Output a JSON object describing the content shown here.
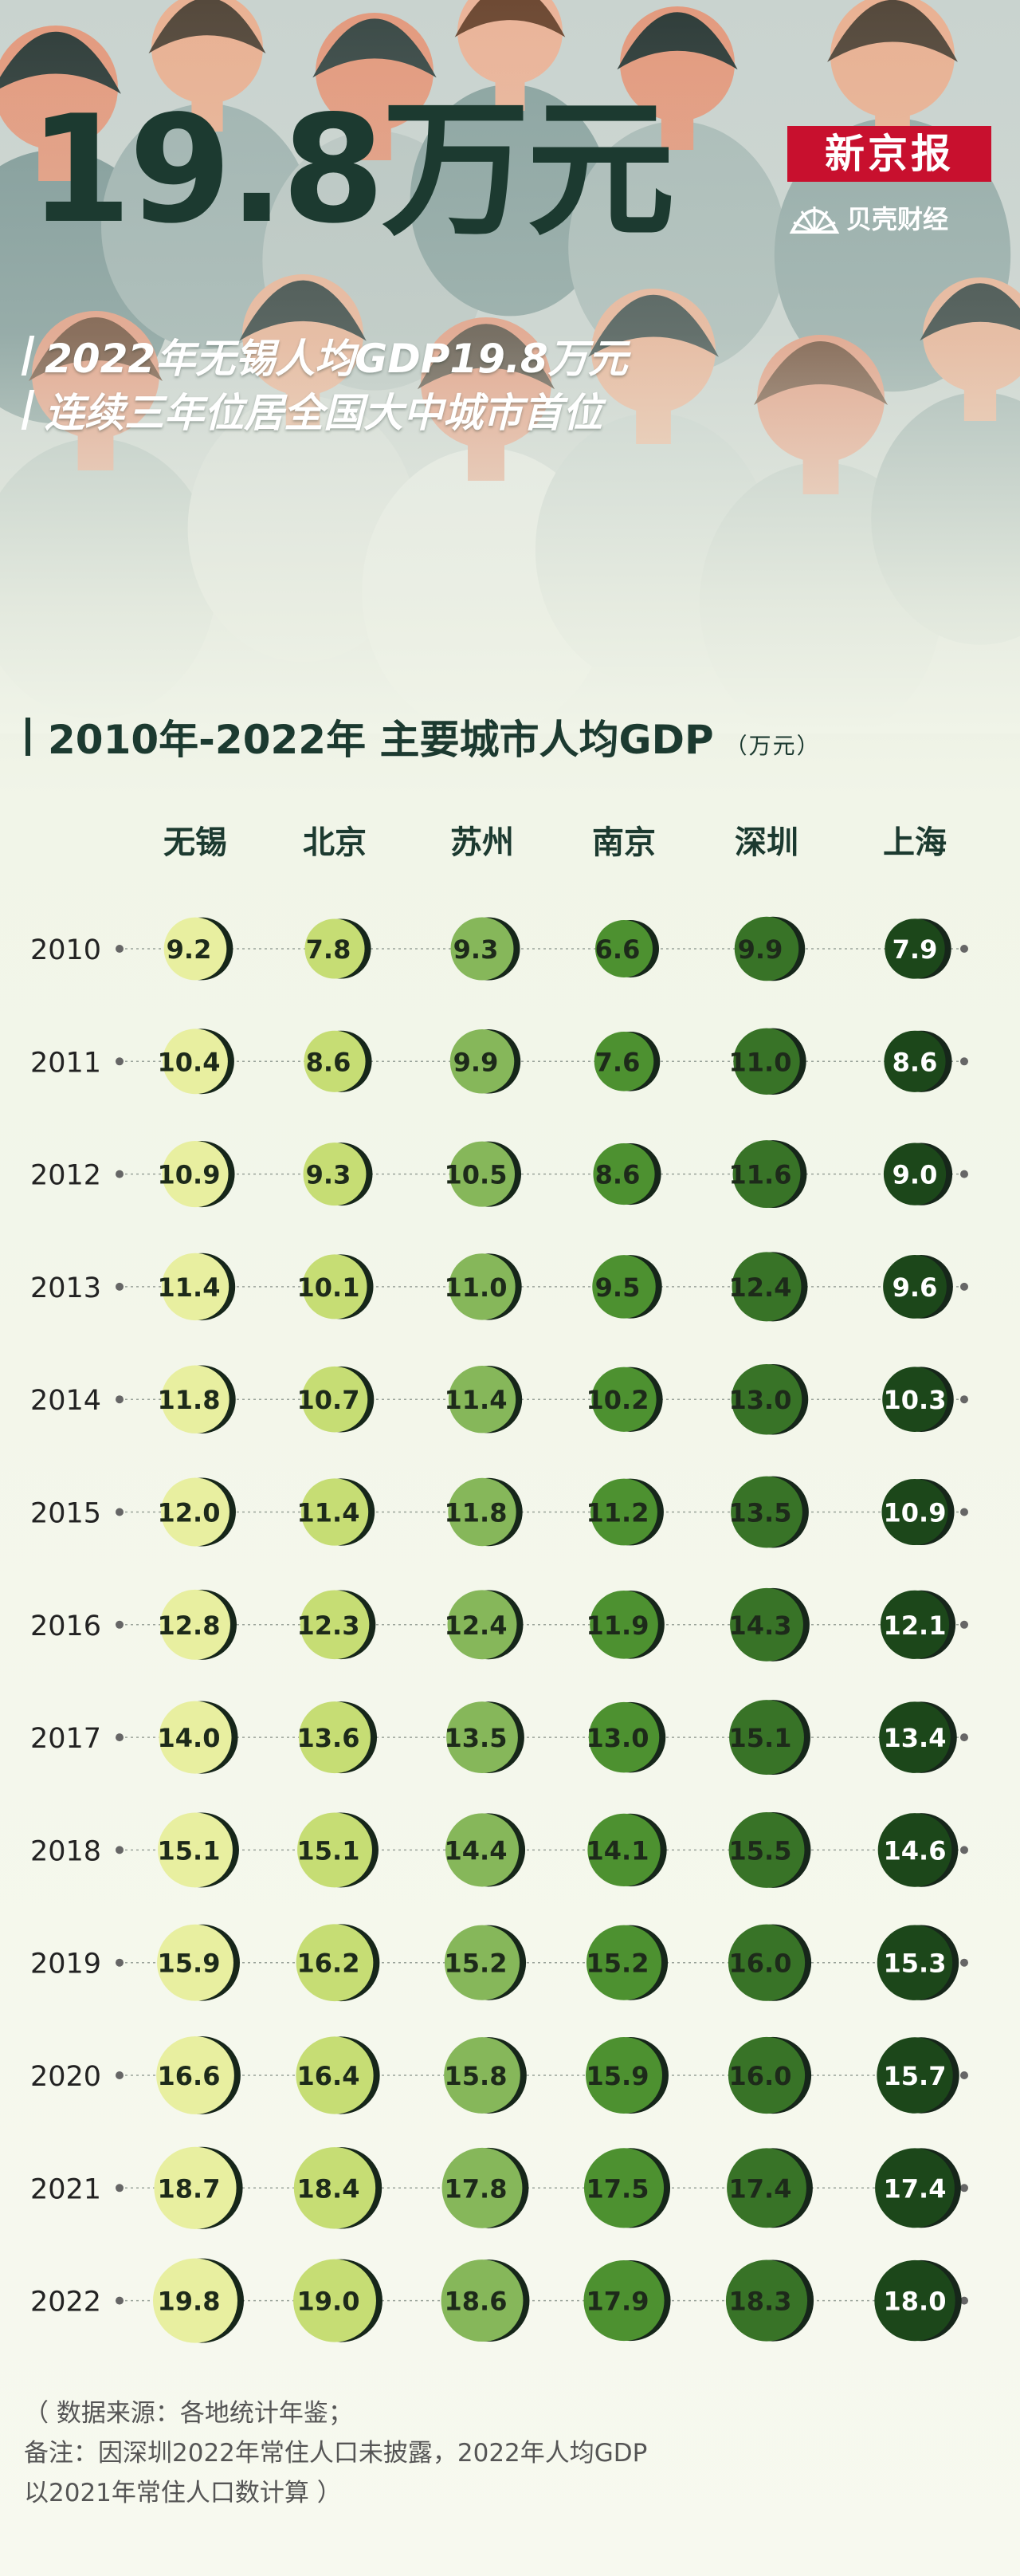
{
  "header": {
    "headline": "19.8万元",
    "subtitle_line1": "2022年无锡人均GDP19.8万元",
    "subtitle_line2": "连续三年位居全国大中城市首位",
    "brand_name": "新京报",
    "brand_sub": "贝壳财经"
  },
  "section": {
    "title": "2010年-2022年 主要城市人均GDP",
    "unit": "（万元）"
  },
  "notes": {
    "line1": "（ 数据来源：各地统计年鉴；",
    "line2": "备注：因深圳2022年常住人口未披露，2022年人均GDP",
    "line3": "以2021年常住人口数计算 ）"
  },
  "colors": {
    "title": "#1c3a30",
    "brand_red": "#c8102e",
    "city_colors": [
      "#e8efa0",
      "#c6dd74",
      "#86b75a",
      "#4d9130",
      "#387327",
      "#1c471a"
    ]
  },
  "chart_data": {
    "type": "table",
    "title": "2010年-2022年 主要城市人均GDP",
    "unit": "万元",
    "categories": [
      "2010",
      "2011",
      "2012",
      "2013",
      "2014",
      "2015",
      "2016",
      "2017",
      "2018",
      "2019",
      "2020",
      "2021",
      "2022"
    ],
    "series": [
      {
        "name": "无锡",
        "values": [
          9.2,
          10.4,
          10.9,
          11.4,
          11.8,
          12.0,
          12.8,
          14.0,
          15.1,
          15.9,
          16.6,
          18.7,
          19.8
        ]
      },
      {
        "name": "北京",
        "values": [
          7.8,
          8.6,
          9.3,
          10.1,
          10.7,
          11.4,
          12.3,
          13.6,
          15.1,
          16.2,
          16.4,
          18.4,
          19.0
        ]
      },
      {
        "name": "苏州",
        "values": [
          9.3,
          9.9,
          10.5,
          11.0,
          11.4,
          11.8,
          12.4,
          13.5,
          14.4,
          15.2,
          15.8,
          17.8,
          18.6
        ]
      },
      {
        "name": "南京",
        "values": [
          6.6,
          7.6,
          8.6,
          9.5,
          10.2,
          11.2,
          11.9,
          13.0,
          14.1,
          15.2,
          15.9,
          17.5,
          17.9
        ]
      },
      {
        "name": "深圳",
        "values": [
          9.9,
          11.0,
          11.6,
          12.4,
          13.0,
          13.5,
          14.3,
          15.1,
          15.5,
          16.0,
          16.0,
          17.4,
          18.3
        ]
      },
      {
        "name": "上海",
        "values": [
          7.9,
          8.6,
          9.0,
          9.6,
          10.3,
          10.9,
          12.1,
          13.4,
          14.6,
          15.3,
          15.7,
          17.4,
          18.0
        ]
      }
    ]
  }
}
